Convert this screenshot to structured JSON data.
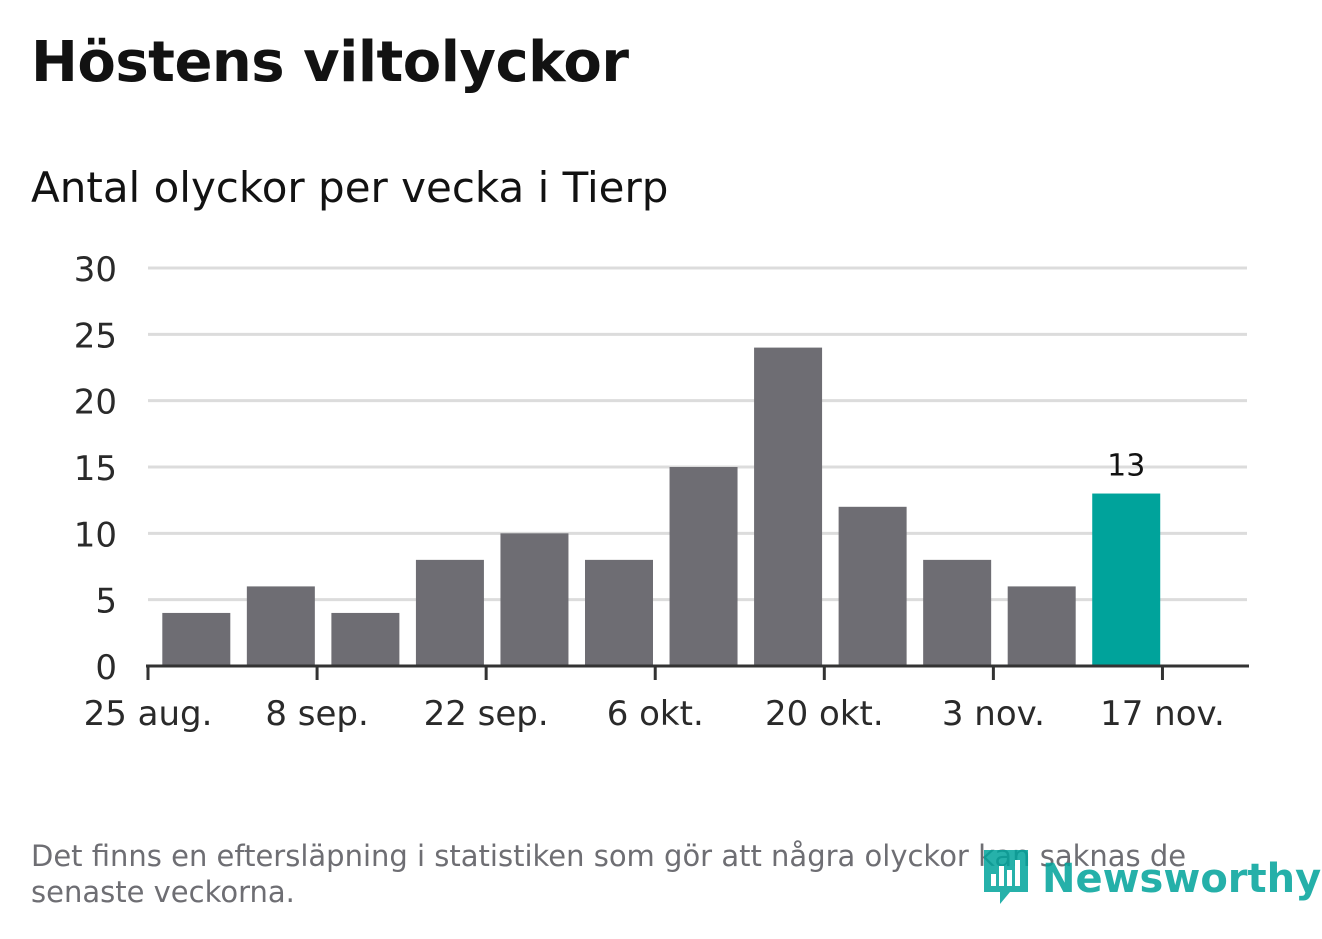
{
  "header": {
    "title": "Höstens viltolyckor",
    "subtitle": "Antal olyckor per vecka i Tierp"
  },
  "footer": {
    "note": "Det finns en eftersläpning i statistiken som gör att några olyckor kan saknas de senaste veckorna.",
    "logo_text": "Newsworthy",
    "logo_icon": "newsworthy-chart-bubble-icon"
  },
  "colors": {
    "bar": "#6e6d73",
    "highlight": "#00a39b",
    "grid": "#dcdcdc",
    "axis": "#333333",
    "text": "#2a2a2a"
  },
  "chart_data": {
    "type": "bar",
    "title": "",
    "xlabel": "",
    "ylabel": "",
    "ylim": [
      0,
      30
    ],
    "yticks": [
      0,
      5,
      10,
      15,
      20,
      25,
      30
    ],
    "x_axis_type": "date",
    "x_range": [
      "2019-08-25",
      "2019-11-24"
    ],
    "xticks": [
      {
        "date": "2019-08-25",
        "label": "25 aug."
      },
      {
        "date": "2019-09-08",
        "label": "8 sep."
      },
      {
        "date": "2019-09-22",
        "label": "22 sep."
      },
      {
        "date": "2019-10-06",
        "label": "6 okt."
      },
      {
        "date": "2019-10-20",
        "label": "20 okt."
      },
      {
        "date": "2019-11-03",
        "label": "3 nov."
      },
      {
        "date": "2019-11-17",
        "label": "17 nov."
      }
    ],
    "grid": true,
    "legend": "none",
    "series": [
      {
        "dates": [
          "2019-08-29",
          "2019-09-05",
          "2019-09-12",
          "2019-09-19",
          "2019-09-26",
          "2019-10-03",
          "2019-10-10",
          "2019-10-17",
          "2019-10-24",
          "2019-10-31",
          "2019-11-07",
          "2019-11-14"
        ],
        "values": [
          4,
          6,
          4,
          8,
          10,
          8,
          15,
          24,
          12,
          8,
          6,
          13
        ]
      }
    ],
    "highlight_index": 11,
    "data_labels": [
      {
        "index": 11,
        "text": "13"
      }
    ]
  }
}
